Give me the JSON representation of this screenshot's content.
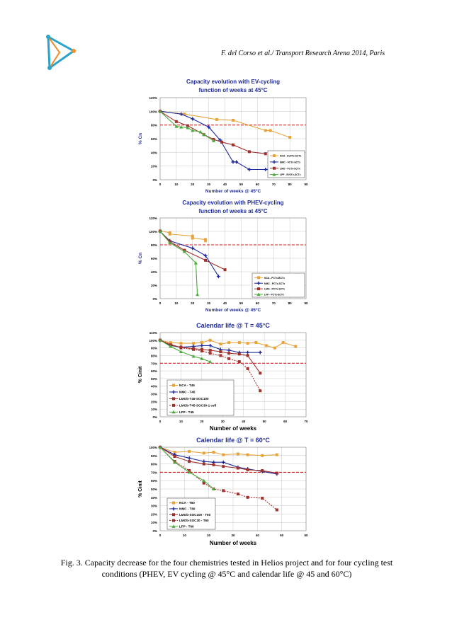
{
  "header": {
    "citation": "F. del Corso et al./ Transport Research Arena 2014, Paris"
  },
  "caption": "Fig. 3. Capacity decrease for the four chemistries tested in Helios project and for four cycling test conditions (PHEV, EV cycling @ 45°C and calendar life @ 45 and 60°C)",
  "colors": {
    "NCA": "#e8a43c",
    "NMC": "#1e2a9c",
    "LMO": "#a0302c",
    "LFP": "#4caa3c",
    "threshold": "#cc2222"
  },
  "chart_data": [
    {
      "type": "line",
      "title_line1": "Capacity evolution with EV-cycling",
      "title_line2": "function of weeks at 45°C",
      "xlabel": "Number of weeks @ 45°C",
      "ylabel": "% Cn",
      "xlim": [
        0,
        90
      ],
      "xticks": [
        0,
        10,
        20,
        30,
        40,
        50,
        60,
        70,
        80,
        90
      ],
      "ylim": [
        0,
        120
      ],
      "yticks": [
        0,
        20,
        40,
        60,
        80,
        100,
        120
      ],
      "ytick_labels": [
        "0%",
        "20%",
        "40%",
        "60%",
        "80%",
        "100%",
        "120%"
      ],
      "threshold": 80,
      "series": [
        {
          "name": "NCA - EV2Tx-SCTx",
          "key": "NCA",
          "x": [
            0,
            15,
            35,
            45,
            65,
            68,
            80
          ],
          "y": [
            100,
            96,
            88,
            87,
            72,
            72,
            62
          ]
        },
        {
          "name": "NMC - FCTx-SCTx",
          "key": "NMC",
          "x": [
            0,
            13,
            20,
            30,
            37,
            45,
            47,
            55,
            65,
            68
          ],
          "y": [
            100,
            96,
            89,
            77,
            58,
            26,
            26,
            15,
            15,
            15
          ]
        },
        {
          "name": "LMO - FCTx-SCTx",
          "key": "LMO",
          "x": [
            0,
            10,
            17,
            27,
            33,
            38,
            45,
            55,
            65
          ],
          "y": [
            100,
            85,
            79,
            66,
            59,
            55,
            51,
            41,
            38
          ]
        },
        {
          "name": "LFP - EV2Tx-SCTx",
          "key": "LFP",
          "x": [
            0,
            10,
            13,
            17,
            20,
            25,
            27,
            33
          ],
          "y": [
            100,
            78,
            77,
            76,
            72,
            70,
            66,
            57
          ]
        }
      ]
    },
    {
      "type": "line",
      "title_line1": "Capacity evolution with PHEV-cycling",
      "title_line2": "function of weeks at 45°C",
      "xlabel": "Number of weeks @ 45°C",
      "ylabel": "% Cn",
      "xlim": [
        0,
        90
      ],
      "xticks": [
        0,
        10,
        20,
        30,
        40,
        50,
        60,
        70,
        80,
        90
      ],
      "ylim": [
        0,
        120
      ],
      "yticks": [
        0,
        20,
        40,
        60,
        80,
        100,
        120
      ],
      "ytick_labels": [
        "0%",
        "20%",
        "40%",
        "60%",
        "80%",
        "100%",
        "120%"
      ],
      "threshold": 80,
      "series": [
        {
          "name": "NCA - PCTx-BCTx",
          "key": "NCA",
          "x": [
            0,
            6,
            6,
            20,
            20,
            28,
            28
          ],
          "y": [
            101,
            98,
            96,
            93,
            90,
            88,
            86
          ]
        },
        {
          "name": "NMC - PCTx-SCTx",
          "key": "NMC",
          "x": [
            0,
            6,
            20,
            28,
            36
          ],
          "y": [
            100,
            86,
            75,
            64,
            33
          ]
        },
        {
          "name": "LMO - PCTx-SCTx",
          "key": "LMO",
          "x": [
            0,
            6,
            15,
            28,
            40
          ],
          "y": [
            100,
            85,
            72,
            57,
            43
          ]
        },
        {
          "name": "LFP - PCTx-SCTx",
          "key": "LFP",
          "x": [
            0,
            6,
            15,
            22,
            23
          ],
          "y": [
            100,
            83,
            70,
            53,
            6
          ]
        }
      ]
    },
    {
      "type": "line",
      "title": "Calendar life @ T = 45°C",
      "xlabel": "Number of weeks",
      "ylabel": "% Cinit",
      "xlim": [
        0,
        70
      ],
      "xticks": [
        0,
        10,
        20,
        30,
        40,
        50,
        60,
        70
      ],
      "ylim": [
        0,
        110
      ],
      "yticks": [
        0,
        10,
        20,
        30,
        40,
        50,
        60,
        70,
        80,
        90,
        100,
        110
      ],
      "ytick_labels": [
        "0%",
        "10%",
        "20%",
        "30%",
        "40%",
        "50%",
        "60%",
        "70%",
        "80%",
        "90%",
        "100%",
        "110%"
      ],
      "threshold": 70,
      "series": [
        {
          "name": "NCA - T45",
          "key": "NCA",
          "dashed": false,
          "x": [
            0,
            5,
            10,
            16,
            20,
            24,
            29,
            33,
            38,
            42,
            46,
            51,
            55,
            59,
            65
          ],
          "y": [
            100,
            97,
            96,
            96,
            97,
            100,
            95,
            97,
            97,
            96,
            97,
            93,
            90,
            97,
            92
          ]
        },
        {
          "name": "NMC - T45",
          "key": "NMC",
          "dashed": false,
          "x": [
            0,
            5,
            10,
            16,
            20,
            24,
            29,
            33,
            38,
            42,
            48
          ],
          "y": [
            100,
            93,
            91,
            92,
            93,
            93,
            88,
            87,
            84,
            84,
            84
          ]
        },
        {
          "name": "LMOb-T45-SOC100",
          "key": "LMO",
          "dashed": false,
          "x": [
            0,
            5,
            10,
            16,
            20,
            24,
            29,
            33,
            38,
            42,
            48
          ],
          "y": [
            100,
            94,
            91,
            89,
            88,
            87,
            85,
            83,
            82,
            80,
            57
          ]
        },
        {
          "name": "LMOb-T45-SOC30-1 cell",
          "key": "LMO",
          "dashed": true,
          "x": [
            0,
            10,
            16,
            20,
            24,
            29,
            33,
            38,
            42,
            48
          ],
          "y": [
            100,
            90,
            88,
            86,
            83,
            80,
            76,
            72,
            63,
            34
          ]
        },
        {
          "name": "LFP - T45",
          "key": "LFP",
          "dashed": false,
          "x": [
            0,
            5,
            10,
            16,
            20,
            24
          ],
          "y": [
            100,
            92,
            85,
            79,
            76,
            72
          ]
        }
      ]
    },
    {
      "type": "line",
      "title": "Calendar life @ T = 60°C",
      "xlabel": "Number of weeks",
      "ylabel": "% Cinit",
      "xlim": [
        0,
        60
      ],
      "xticks": [
        0,
        10,
        20,
        30,
        40,
        50,
        60
      ],
      "ylim": [
        0,
        100
      ],
      "yticks": [
        0,
        10,
        20,
        30,
        40,
        50,
        60,
        70,
        80,
        90,
        100
      ],
      "ytick_labels": [
        "0%",
        "10%",
        "20%",
        "30%",
        "40%",
        "50%",
        "60%",
        "70%",
        "80%",
        "90%",
        "100%"
      ],
      "threshold": 70,
      "series": [
        {
          "name": "NCA - T60",
          "key": "NCA",
          "dashed": false,
          "x": [
            0,
            6,
            12,
            18,
            22,
            26,
            32,
            36,
            42,
            48
          ],
          "y": [
            100,
            94,
            95,
            93,
            94,
            91,
            92,
            91,
            90,
            91
          ]
        },
        {
          "name": "NMC - T60",
          "key": "NMC",
          "dashed": false,
          "x": [
            0,
            6,
            12,
            18,
            22,
            26,
            32,
            36,
            42,
            48
          ],
          "y": [
            100,
            91,
            87,
            83,
            82,
            82,
            76,
            74,
            71,
            68
          ]
        },
        {
          "name": "LMOb-SOC100 - T60",
          "key": "LMO",
          "dashed": false,
          "x": [
            0,
            6,
            12,
            18,
            22,
            26,
            32,
            36,
            42,
            48
          ],
          "y": [
            100,
            89,
            83,
            80,
            79,
            77,
            75,
            73,
            72,
            69
          ]
        },
        {
          "name": "LMOb-SOC30 - T60",
          "key": "LMO",
          "dashed": true,
          "x": [
            0,
            6,
            12,
            18,
            22,
            26,
            32,
            36,
            42,
            48
          ],
          "y": [
            100,
            83,
            72,
            57,
            50,
            48,
            44,
            40,
            39,
            25
          ]
        },
        {
          "name": "LFP - T60",
          "key": "LFP",
          "dashed": false,
          "x": [
            0,
            6,
            12,
            18,
            22
          ],
          "y": [
            100,
            82,
            70,
            60,
            50
          ]
        }
      ]
    }
  ]
}
